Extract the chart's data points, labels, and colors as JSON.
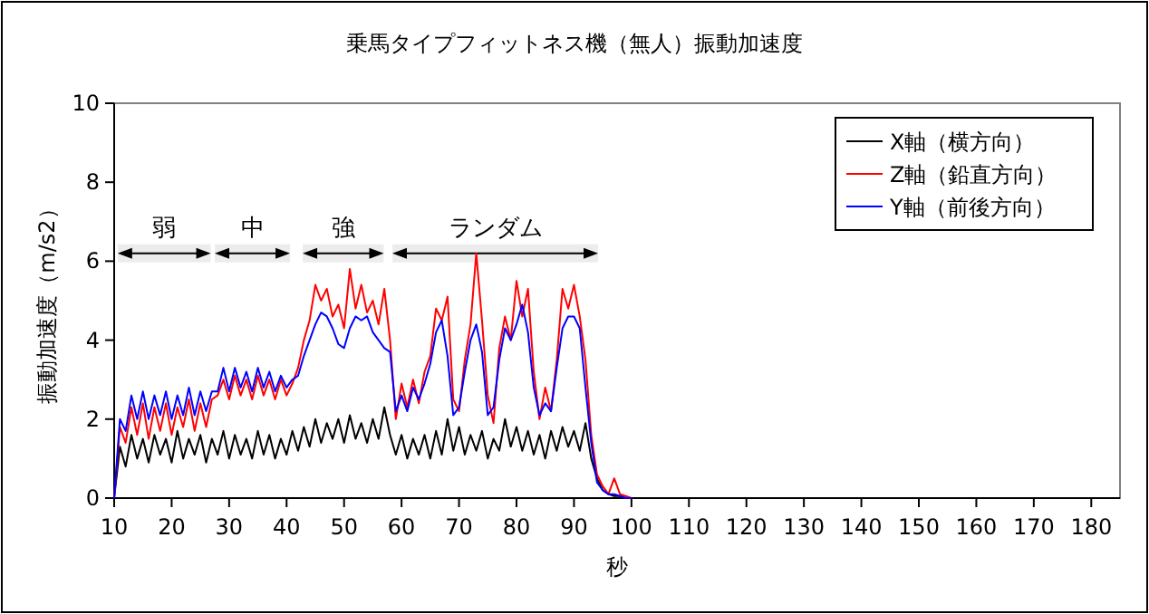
{
  "chart_data": {
    "type": "line",
    "title": "乗馬タイプフィットネス機（無人）振動加速度",
    "xlabel": "秒",
    "ylabel": "振動加速度（m/s2）",
    "xlim": [
      10,
      185
    ],
    "ylim": [
      0,
      10
    ],
    "xticks": [
      10,
      20,
      30,
      40,
      50,
      60,
      70,
      80,
      90,
      100,
      110,
      120,
      130,
      140,
      150,
      160,
      170,
      180
    ],
    "yticks": [
      0,
      2,
      4,
      6,
      8,
      10
    ],
    "grid": false,
    "legend": "top right",
    "marker": "none",
    "line_style": "solid",
    "x": [
      10,
      11,
      12,
      13,
      14,
      15,
      16,
      17,
      18,
      19,
      20,
      21,
      22,
      23,
      24,
      25,
      26,
      27,
      28,
      29,
      30,
      31,
      32,
      33,
      34,
      35,
      36,
      37,
      38,
      39,
      40,
      41,
      42,
      43,
      44,
      45,
      46,
      47,
      48,
      49,
      50,
      51,
      52,
      53,
      54,
      55,
      56,
      57,
      58,
      59,
      60,
      61,
      62,
      63,
      64,
      65,
      66,
      67,
      68,
      69,
      70,
      71,
      72,
      73,
      74,
      75,
      76,
      77,
      78,
      79,
      80,
      81,
      82,
      83,
      84,
      85,
      86,
      87,
      88,
      89,
      90,
      91,
      92,
      93,
      94,
      95,
      96,
      97,
      98,
      99,
      100
    ],
    "series": [
      {
        "name": "X軸（横方向）",
        "color": "#000000",
        "values": [
          0,
          1.3,
          0.8,
          1.6,
          1.0,
          1.5,
          0.9,
          1.6,
          1.1,
          1.5,
          0.9,
          1.7,
          1.0,
          1.5,
          1.1,
          1.6,
          0.9,
          1.5,
          1.1,
          1.7,
          1.0,
          1.6,
          1.1,
          1.5,
          1.0,
          1.7,
          1.1,
          1.6,
          1.0,
          1.5,
          1.1,
          1.7,
          1.2,
          1.8,
          1.3,
          2.0,
          1.4,
          1.9,
          1.5,
          2.0,
          1.4,
          2.1,
          1.5,
          1.9,
          1.4,
          2.0,
          1.5,
          2.3,
          1.6,
          1.1,
          1.6,
          1.0,
          1.5,
          1.1,
          1.6,
          1.0,
          1.7,
          1.1,
          2.0,
          1.2,
          1.8,
          1.1,
          1.6,
          1.2,
          1.7,
          1.0,
          1.5,
          1.2,
          2.0,
          1.3,
          1.8,
          1.2,
          1.7,
          1.1,
          1.6,
          1.0,
          1.7,
          1.2,
          1.8,
          1.3,
          1.7,
          1.2,
          1.9,
          1.0,
          0.5,
          0.2,
          0.1,
          0.05,
          0.05,
          0,
          0
        ]
      },
      {
        "name": "Z軸（鉛直方向）",
        "color": "#ff0000",
        "values": [
          0,
          1.8,
          1.4,
          2.3,
          1.6,
          2.4,
          1.5,
          2.3,
          1.7,
          2.4,
          1.6,
          2.3,
          1.8,
          2.5,
          1.7,
          2.4,
          1.8,
          2.5,
          2.6,
          3.0,
          2.5,
          3.1,
          2.6,
          3.0,
          2.5,
          3.1,
          2.6,
          3.0,
          2.5,
          3.0,
          2.6,
          2.9,
          3.3,
          4.0,
          4.5,
          5.4,
          5.0,
          5.3,
          4.6,
          4.9,
          4.3,
          5.8,
          4.8,
          5.4,
          4.7,
          5.0,
          4.4,
          5.3,
          4.0,
          2.0,
          2.9,
          2.3,
          3.0,
          2.4,
          3.2,
          3.6,
          4.8,
          4.5,
          5.1,
          2.5,
          2.2,
          3.5,
          4.4,
          6.2,
          4.5,
          2.6,
          1.9,
          3.8,
          4.6,
          4.0,
          5.5,
          4.6,
          5.3,
          3.2,
          2.0,
          2.8,
          2.2,
          3.5,
          5.3,
          4.8,
          5.4,
          4.6,
          3.5,
          1.6,
          0.6,
          0.3,
          0.1,
          0.5,
          0.1,
          0.05,
          0
        ]
      },
      {
        "name": "Y軸（前後方向）",
        "color": "#0000ff",
        "values": [
          0,
          2.0,
          1.7,
          2.6,
          2.0,
          2.7,
          2.0,
          2.6,
          2.1,
          2.7,
          2.0,
          2.6,
          2.1,
          2.8,
          2.1,
          2.7,
          2.2,
          2.7,
          2.7,
          3.3,
          2.7,
          3.3,
          2.8,
          3.2,
          2.7,
          3.3,
          2.8,
          3.2,
          2.7,
          3.1,
          2.8,
          3.0,
          3.1,
          3.6,
          4.0,
          4.4,
          4.7,
          4.6,
          4.3,
          3.9,
          3.8,
          4.3,
          4.6,
          4.5,
          4.6,
          4.2,
          4.0,
          3.8,
          3.7,
          2.2,
          2.6,
          2.2,
          2.8,
          2.5,
          2.9,
          3.4,
          4.2,
          4.5,
          3.6,
          2.1,
          2.3,
          3.2,
          4.0,
          4.4,
          3.7,
          2.1,
          2.3,
          3.5,
          4.3,
          4.0,
          4.4,
          4.9,
          4.2,
          2.8,
          2.1,
          2.4,
          2.2,
          3.3,
          4.3,
          4.6,
          4.6,
          4.3,
          2.8,
          1.4,
          0.4,
          0.2,
          0.1,
          0.1,
          0.05,
          0,
          0
        ]
      }
    ],
    "bands": [
      {
        "axis": "x",
        "from": 10.6,
        "to": 26.8,
        "label": "弱"
      },
      {
        "axis": "x",
        "from": 27.5,
        "to": 40.6,
        "label": "中"
      },
      {
        "axis": "x",
        "from": 42.8,
        "to": 56.9,
        "label": "強"
      },
      {
        "axis": "x",
        "from": 58.4,
        "to": 94.2,
        "label": "ランダム"
      }
    ]
  }
}
